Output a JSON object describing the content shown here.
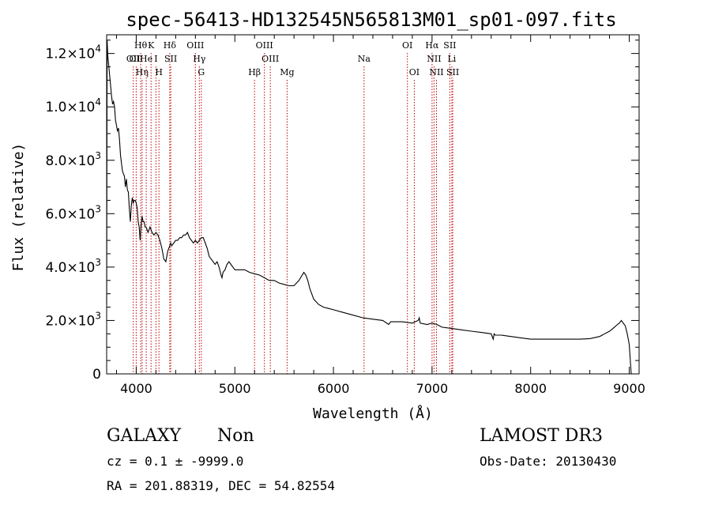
{
  "title": "spec-56413-HD132545N565813M01_sp01-097.fits",
  "info": {
    "class": "GALAXY",
    "subclass": "Non",
    "cz_line": "cz = 0.1 ± -9999.0",
    "coords_line": "RA = 201.88319, DEC =  54.82554",
    "survey": "LAMOST DR3",
    "obs_date": "Obs-Date: 20130430"
  },
  "colors": {
    "spectrum": "#000000",
    "line_marker": "#c00000",
    "axis": "#000000"
  },
  "chart_data": {
    "type": "line",
    "title": "spec-56413-HD132545N565813M01_sp01-097.fits",
    "xlabel": "Wavelength (Å)",
    "ylabel": "Flux (relative)",
    "xlim": [
      3700,
      9100
    ],
    "ylim": [
      0,
      12700
    ],
    "grid": false,
    "x_ticks": [
      {
        "value": 4000,
        "label": "4000"
      },
      {
        "value": 5000,
        "label": "5000"
      },
      {
        "value": 6000,
        "label": "6000"
      },
      {
        "value": 7000,
        "label": "7000"
      },
      {
        "value": 8000,
        "label": "8000"
      },
      {
        "value": 9000,
        "label": "9000"
      }
    ],
    "y_ticks": [
      {
        "value": 0,
        "mant": "0",
        "exp": ""
      },
      {
        "value": 2000,
        "mant": "2.0×10",
        "exp": "3"
      },
      {
        "value": 4000,
        "mant": "4.0×10",
        "exp": "3"
      },
      {
        "value": 6000,
        "mant": "6.0×10",
        "exp": "3"
      },
      {
        "value": 8000,
        "mant": "8.0×10",
        "exp": "3"
      },
      {
        "value": 10000,
        "mant": "1.0×10",
        "exp": "4"
      },
      {
        "value": 12000,
        "mant": "1.2×10",
        "exp": "4"
      }
    ],
    "series": [
      {
        "name": "flux",
        "x": [
          3700,
          3705,
          3712,
          3720,
          3730,
          3740,
          3750,
          3760,
          3770,
          3780,
          3790,
          3800,
          3810,
          3820,
          3830,
          3840,
          3850,
          3860,
          3870,
          3880,
          3890,
          3900,
          3910,
          3920,
          3930,
          3940,
          3950,
          3960,
          3970,
          3980,
          3990,
          4000,
          4010,
          4020,
          4030,
          4040,
          4050,
          4060,
          4070,
          4080,
          4090,
          4100,
          4110,
          4120,
          4130,
          4140,
          4150,
          4160,
          4180,
          4200,
          4220,
          4240,
          4260,
          4280,
          4300,
          4320,
          4340,
          4350,
          4360,
          4380,
          4400,
          4420,
          4440,
          4460,
          4480,
          4500,
          4520,
          4540,
          4560,
          4580,
          4600,
          4620,
          4640,
          4660,
          4680,
          4700,
          4720,
          4740,
          4760,
          4780,
          4800,
          4820,
          4840,
          4860,
          4870,
          4880,
          4900,
          4920,
          4940,
          4960,
          4980,
          5000,
          5050,
          5100,
          5150,
          5200,
          5250,
          5300,
          5350,
          5400,
          5450,
          5500,
          5550,
          5600,
          5650,
          5700,
          5720,
          5740,
          5760,
          5780,
          5800,
          5850,
          5900,
          5950,
          6000,
          6100,
          6200,
          6300,
          6400,
          6500,
          6560,
          6580,
          6600,
          6700,
          6800,
          6860,
          6870,
          6880,
          6950,
          7000,
          7050,
          7100,
          7200,
          7300,
          7400,
          7500,
          7600,
          7620,
          7630,
          7640,
          7700,
          7800,
          7900,
          8000,
          8100,
          8200,
          8300,
          8400,
          8500,
          8600,
          8700,
          8750,
          8800,
          8850,
          8880,
          8900,
          8920,
          8940,
          8960,
          8980,
          9000,
          9020
        ],
        "values": [
          2600,
          12500,
          11900,
          11600,
          11200,
          10800,
          10400,
          10100,
          10200,
          10000,
          9500,
          9300,
          9100,
          9200,
          8800,
          8200,
          7900,
          7600,
          7500,
          7400,
          7000,
          7300,
          6900,
          6800,
          6200,
          5700,
          6300,
          6600,
          6400,
          6500,
          6500,
          6400,
          6200,
          5700,
          5500,
          5000,
          5600,
          5900,
          5700,
          5700,
          5500,
          5500,
          5400,
          5300,
          5400,
          5500,
          5400,
          5300,
          5200,
          5300,
          5200,
          5000,
          4700,
          4300,
          4200,
          4600,
          4800,
          4900,
          4800,
          4900,
          5000,
          5000,
          5100,
          5100,
          5200,
          5200,
          5300,
          5100,
          5000,
          4900,
          5000,
          4900,
          5000,
          5100,
          5100,
          4900,
          4700,
          4400,
          4300,
          4200,
          4100,
          4200,
          4000,
          3700,
          3600,
          3800,
          3900,
          4100,
          4200,
          4100,
          4000,
          3900,
          3900,
          3900,
          3800,
          3750,
          3700,
          3600,
          3500,
          3500,
          3400,
          3350,
          3300,
          3300,
          3500,
          3800,
          3700,
          3500,
          3200,
          3000,
          2800,
          2600,
          2500,
          2450,
          2400,
          2300,
          2200,
          2100,
          2050,
          2000,
          1850,
          1950,
          1950,
          1950,
          1900,
          2000,
          2100,
          1900,
          1850,
          1900,
          1850,
          1750,
          1700,
          1650,
          1600,
          1550,
          1500,
          1300,
          1500,
          1450,
          1450,
          1400,
          1350,
          1300,
          1300,
          1300,
          1300,
          1300,
          1300,
          1320,
          1400,
          1500,
          1600,
          1750,
          1850,
          1900,
          2000,
          1900,
          1800,
          1500,
          1100,
          0
        ]
      }
    ],
    "lines": [
      {
        "x": 3970,
        "label": "OII",
        "row": 2
      },
      {
        "x": 4000,
        "label": "OII",
        "row": 2
      },
      {
        "x": 4045,
        "label": "Hθ",
        "row": 1
      },
      {
        "x": 4060,
        "label": "Hη",
        "row": 3
      },
      {
        "x": 4101,
        "label": "He",
        "row": 2
      },
      {
        "x": 4150,
        "label": "K",
        "row": 1
      },
      {
        "x": 4200,
        "label": "I",
        "row": 2
      },
      {
        "x": 4230,
        "label": "H",
        "row": 3
      },
      {
        "x": 4340,
        "label": "Hδ",
        "row": 1
      },
      {
        "x": 4350,
        "label": "SII",
        "row": 2
      },
      {
        "x": 4600,
        "label": "OIII",
        "row": 1
      },
      {
        "x": 4640,
        "label": "Hγ",
        "row": 2
      },
      {
        "x": 4660,
        "label": "G",
        "row": 3
      },
      {
        "x": 5200,
        "label": "Hβ",
        "row": 3
      },
      {
        "x": 5300,
        "label": "OIII",
        "row": 1
      },
      {
        "x": 5360,
        "label": "OIII",
        "row": 2
      },
      {
        "x": 5530,
        "label": "Mg",
        "row": 3
      },
      {
        "x": 6310,
        "label": "Na",
        "row": 2
      },
      {
        "x": 6750,
        "label": "OI",
        "row": 1
      },
      {
        "x": 6820,
        "label": "OI",
        "row": 3
      },
      {
        "x": 7000,
        "label": "Hα",
        "row": 1
      },
      {
        "x": 7020,
        "label": "NII",
        "row": 2
      },
      {
        "x": 7045,
        "label": "NII",
        "row": 3
      },
      {
        "x": 7180,
        "label": "SII",
        "row": 1
      },
      {
        "x": 7200,
        "label": "Li",
        "row": 2
      },
      {
        "x": 7210,
        "label": "SII",
        "row": 3
      }
    ]
  }
}
